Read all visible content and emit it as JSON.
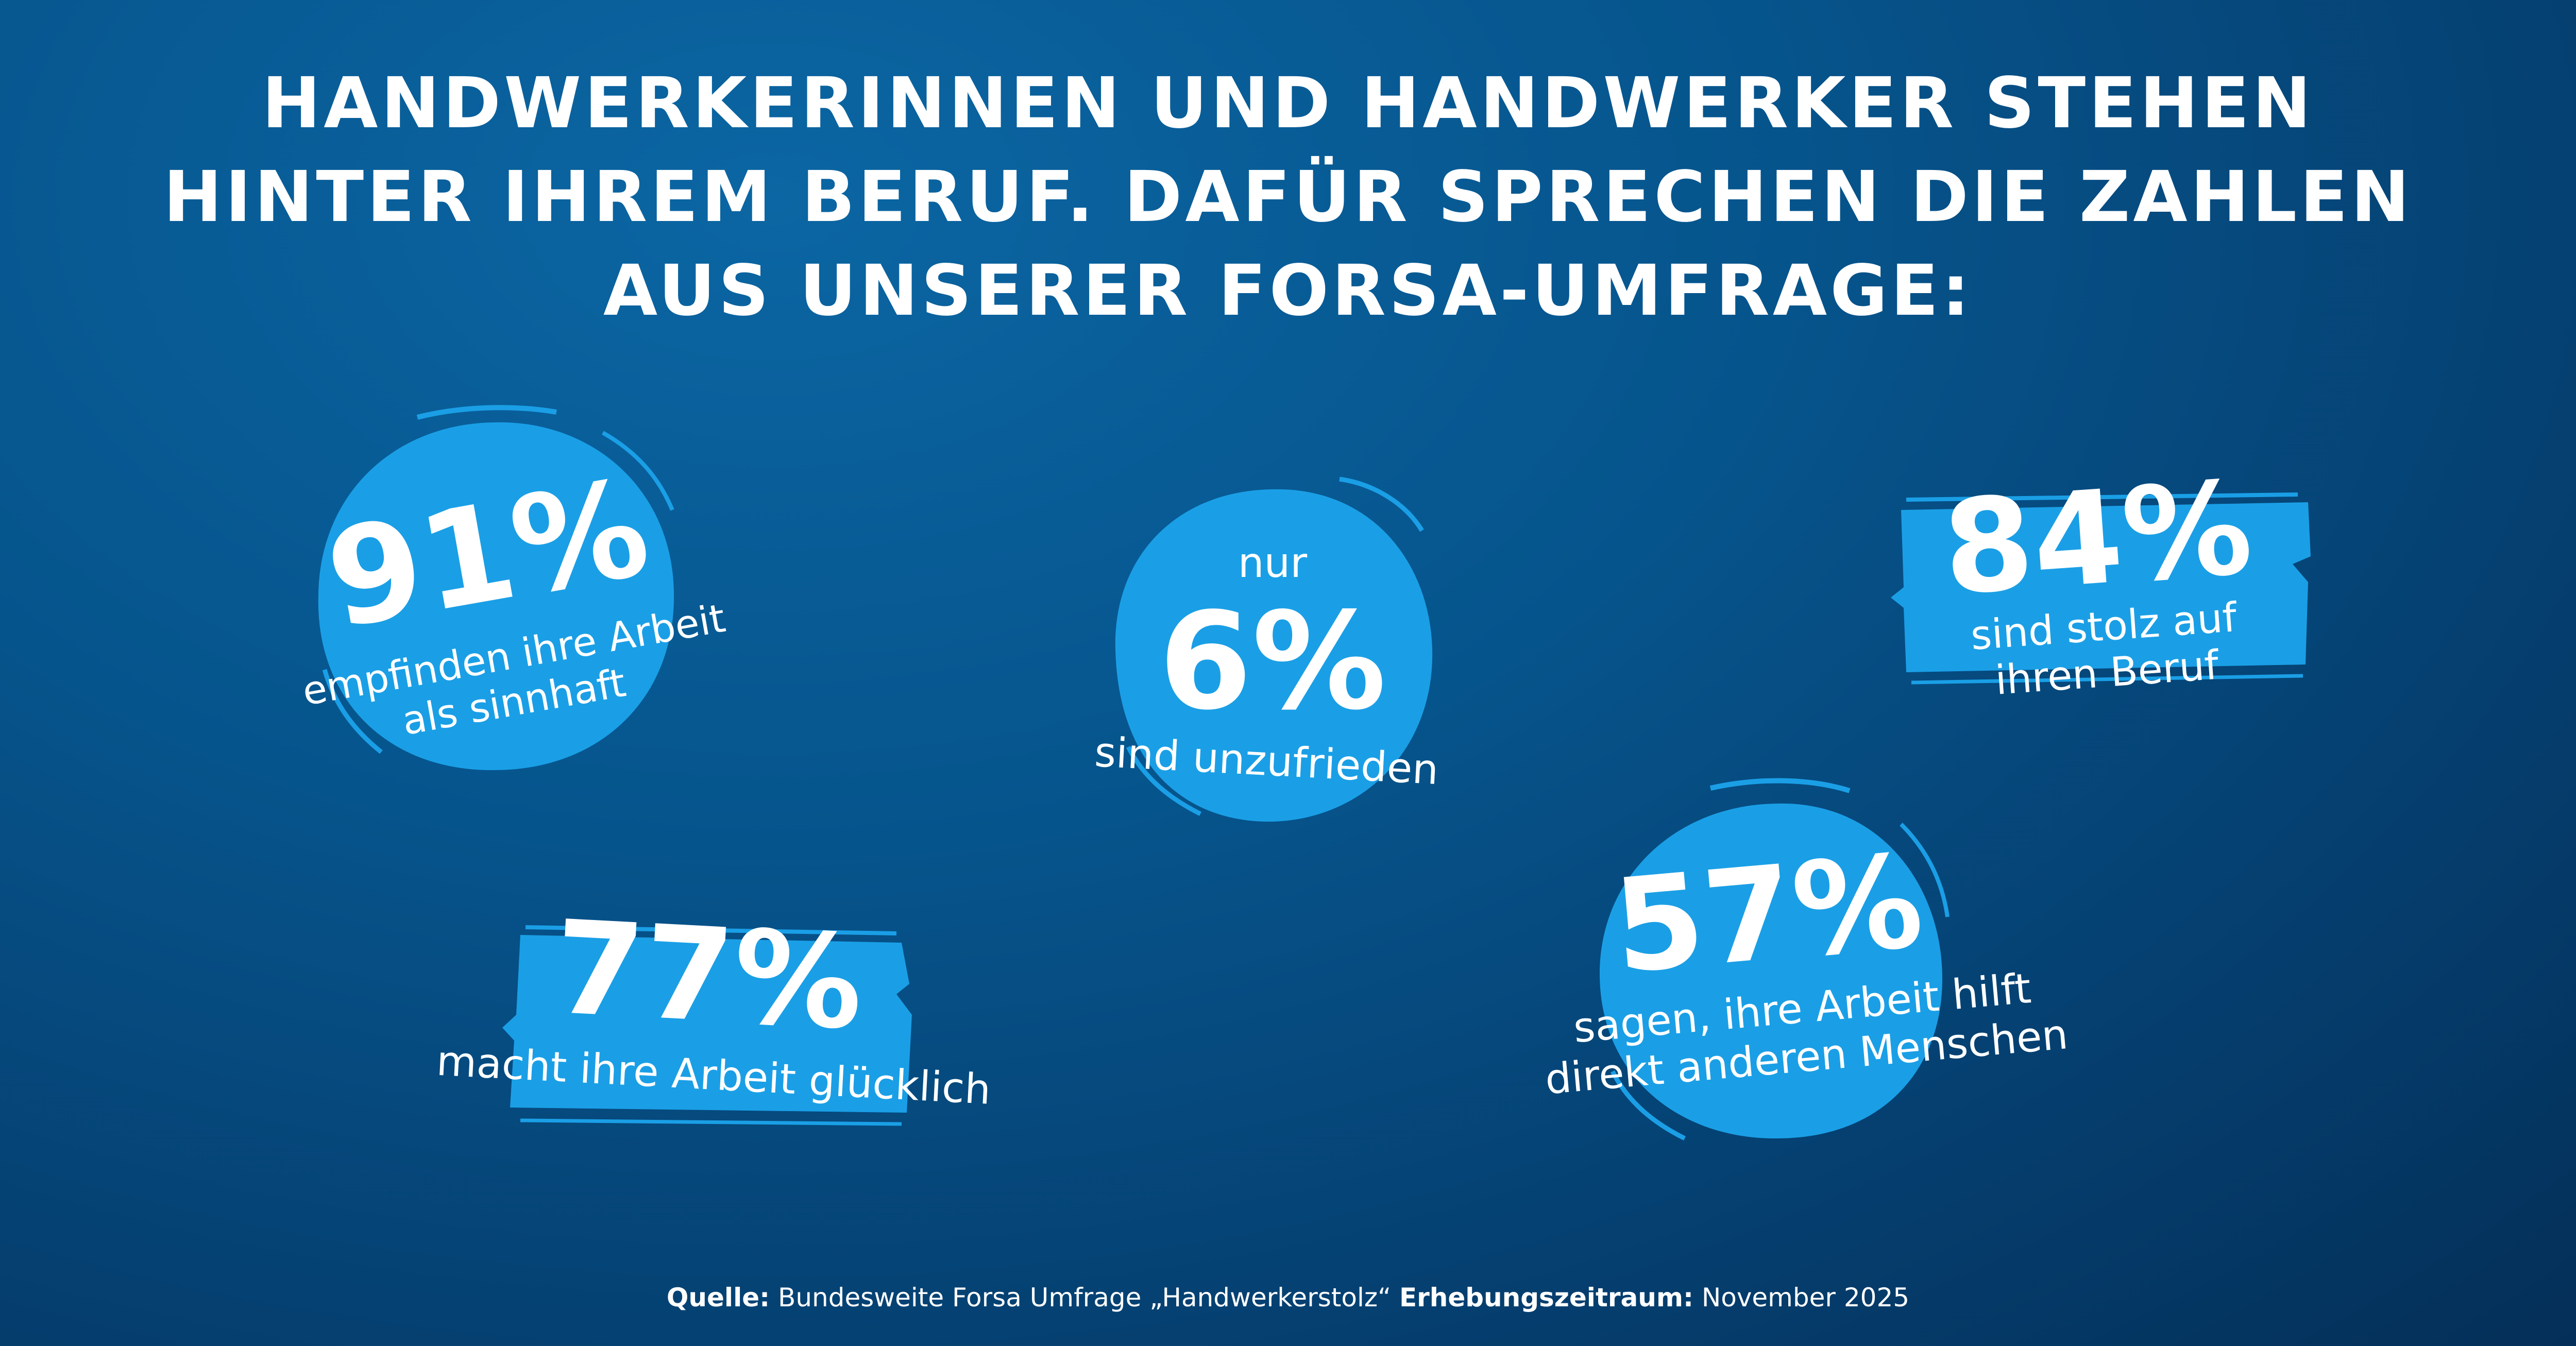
{
  "headline": {
    "line1": "HANDWERKERINNEN UND HANDWERKER STEHEN",
    "line2": "HINTER IHREM BERUF. DAFÜR SPRECHEN DIE ZAHLEN",
    "line3": "AUS UNSERER FORSA-UMFRAGE:"
  },
  "stats": {
    "s91": {
      "value": "91%",
      "caption1": "empfinden ihre Arbeit",
      "caption2": "als sinnhaft"
    },
    "s6": {
      "prefix": "nur",
      "value": "6%",
      "caption1": "sind unzufrieden"
    },
    "s84": {
      "value": "84%",
      "caption1": "sind stolz auf",
      "caption2": "ihren Beruf"
    },
    "s77": {
      "value": "77%",
      "caption1": "macht ihre Arbeit glücklich"
    },
    "s57": {
      "value": "57%",
      "caption1": "sagen, ihre Arbeit hilft",
      "caption2": "direkt anderen Menschen"
    }
  },
  "source": {
    "label1": "Quelle:",
    "text1": " Bundesweite Forsa Umfrage „Handwerkerstolz“ ",
    "label2": "Erhebungszeitraum:",
    "text2": " November 2025"
  },
  "colors": {
    "badge": "#1a9fe6",
    "background": "#05508a",
    "text": "#ffffff"
  }
}
